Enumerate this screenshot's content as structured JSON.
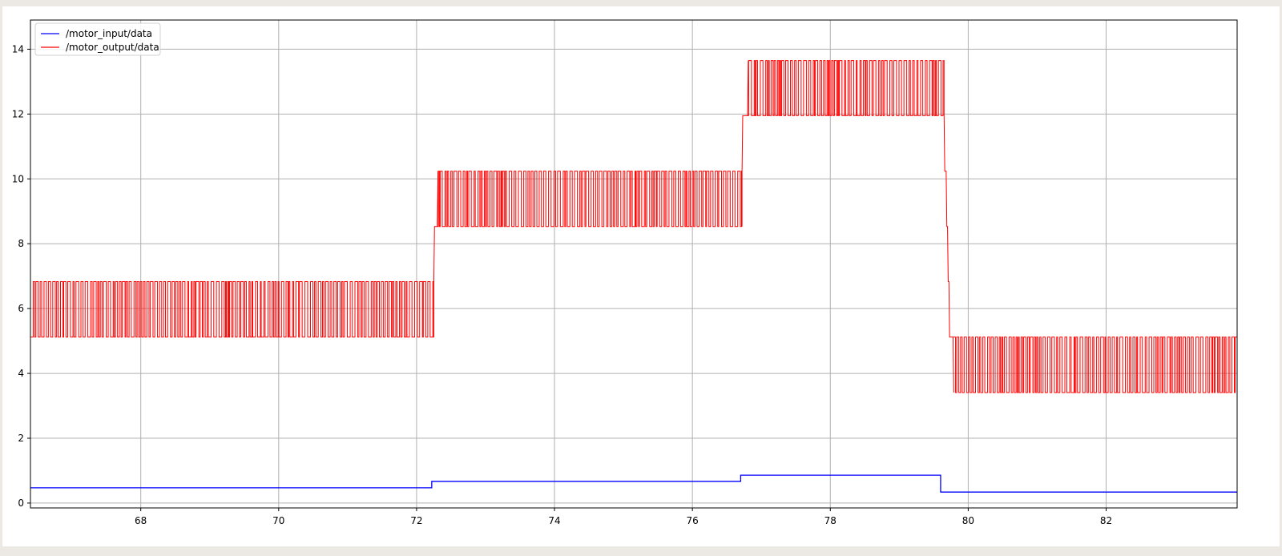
{
  "chart_data": {
    "type": "line",
    "title": "",
    "xlabel": "",
    "ylabel": "",
    "xlim": [
      66.4,
      83.9
    ],
    "ylim": [
      -0.15,
      14.9
    ],
    "x_ticks": [
      68,
      70,
      72,
      74,
      76,
      78,
      80,
      82
    ],
    "y_ticks": [
      0,
      2,
      4,
      6,
      8,
      10,
      12,
      14
    ],
    "grid": true,
    "legend_position": "top-left",
    "series": [
      {
        "name": "/motor_input/data",
        "color": "#0000ff",
        "style": "step",
        "segments": [
          {
            "x_start": 66.4,
            "x_end": 72.22,
            "value": 0.47
          },
          {
            "x_start": 72.22,
            "x_end": 76.7,
            "value": 0.67
          },
          {
            "x_start": 76.7,
            "x_end": 79.6,
            "value": 0.86
          },
          {
            "x_start": 79.6,
            "x_end": 83.9,
            "value": 0.34
          }
        ]
      },
      {
        "name": "/motor_output/data",
        "color": "#ff0000",
        "style": "oscillating",
        "segments": [
          {
            "x_start": 66.4,
            "x_end": 72.25,
            "low": 5.12,
            "high": 6.83
          },
          {
            "x_start": 72.3,
            "x_end": 76.72,
            "low": 8.53,
            "high": 10.24
          },
          {
            "x_start": 76.8,
            "x_end": 79.65,
            "low": 11.95,
            "high": 13.65
          },
          {
            "x_start": 79.78,
            "x_end": 83.9,
            "low": 3.41,
            "high": 5.12
          }
        ],
        "transitions": [
          {
            "x": 72.25,
            "from": 6.83,
            "to": 8.53
          },
          {
            "x": 72.3,
            "from": 8.53,
            "to": 10.24
          },
          {
            "x": 76.72,
            "from": 10.24,
            "to": 11.95
          },
          {
            "x": 76.8,
            "from": 11.95,
            "to": 13.65
          },
          {
            "x": 79.65,
            "from": 11.95,
            "to": 10.24
          },
          {
            "x": 79.68,
            "from": 10.24,
            "to": 8.53
          },
          {
            "x": 79.7,
            "from": 8.53,
            "to": 6.83
          },
          {
            "x": 79.72,
            "from": 6.83,
            "to": 5.12
          },
          {
            "x": 79.78,
            "from": 5.12,
            "to": 3.41
          }
        ]
      }
    ]
  }
}
